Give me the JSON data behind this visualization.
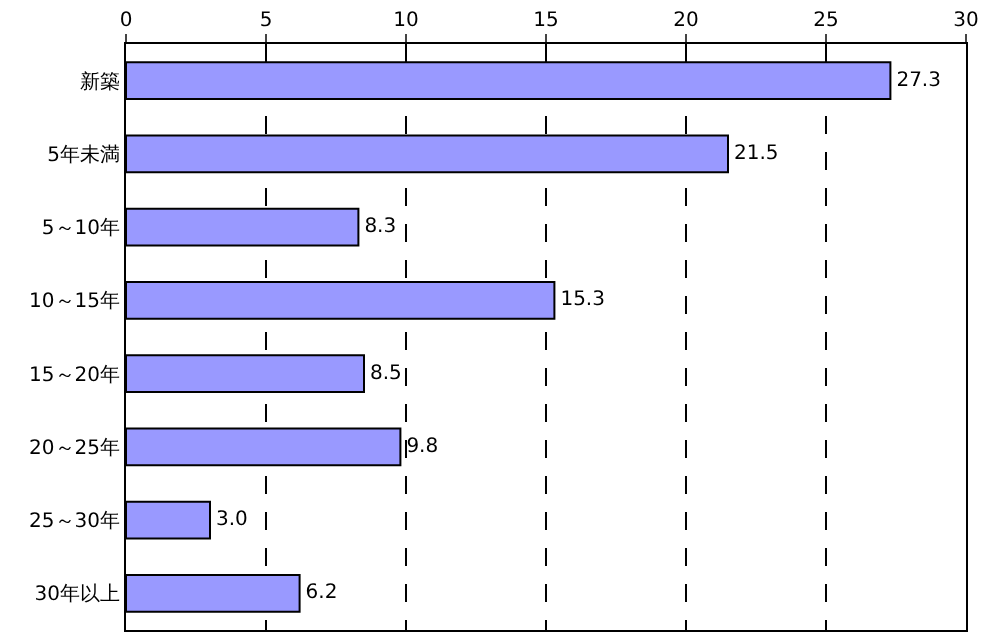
{
  "chart_data": {
    "type": "bar",
    "orientation": "horizontal",
    "categories": [
      "新築",
      "5年未満",
      "5～10年",
      "10～15年",
      "15～20年",
      "20～25年",
      "25～30年",
      "30年以上"
    ],
    "values": [
      27.3,
      21.5,
      8.3,
      15.3,
      8.5,
      9.8,
      3.0,
      6.2
    ],
    "value_labels": [
      "27.3",
      "21.5",
      "8.3",
      "15.3",
      "8.5",
      "9.8",
      "3.0",
      "6.2"
    ],
    "color": "#9999ff",
    "xlim": [
      0,
      30
    ],
    "xticks": [
      0,
      5,
      10,
      15,
      20,
      25,
      30
    ],
    "grid": "x",
    "legend": false
  }
}
